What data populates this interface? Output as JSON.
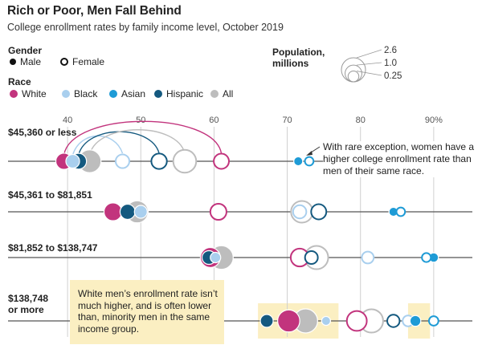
{
  "title": "Rich or Poor, Men Fall Behind",
  "subtitle": "College enrollment rates by family income level, October 2019",
  "legend": {
    "gender_title": "Gender",
    "gender_items": [
      {
        "label": "Male",
        "style": "filled"
      },
      {
        "label": "Female",
        "style": "open"
      }
    ],
    "race_title": "Race",
    "race_items": [
      {
        "label": "White",
        "color": "#c2347d"
      },
      {
        "label": "Black",
        "color": "#a9cfee"
      },
      {
        "label": "Asian",
        "color": "#1e9bd6"
      },
      {
        "label": "Hispanic",
        "color": "#14597f"
      },
      {
        "label": "All",
        "color": "#bdbdbd"
      }
    ],
    "population_title_line1": "Population,",
    "population_title_line2": "millions",
    "population_sizes": [
      {
        "label": "2.6",
        "value": 2.6
      },
      {
        "label": "1.0",
        "value": 1.0
      },
      {
        "label": "0.25",
        "value": 0.25
      }
    ]
  },
  "chart_data": {
    "type": "scatter",
    "title": "Rich or Poor, Men Fall Behind",
    "subtitle": "College enrollment rates by family income level, October 2019",
    "x_ticks": [
      {
        "value": 40,
        "label": "40"
      },
      {
        "value": 50,
        "label": "50"
      },
      {
        "value": 60,
        "label": "60"
      },
      {
        "value": 70,
        "label": "70"
      },
      {
        "value": 80,
        "label": "80"
      },
      {
        "value": 90,
        "label": "90%"
      }
    ],
    "xlim": [
      34.5,
      95.5
    ],
    "grid": true,
    "rows": [
      {
        "label_lines": [
          "$45,360 or less"
        ],
        "points": [
          {
            "race": "All",
            "gender": "Male",
            "value": 43,
            "population": 2.3
          },
          {
            "race": "White",
            "gender": "Male",
            "value": 39.5,
            "population": 0.9
          },
          {
            "race": "Hispanic",
            "gender": "Male",
            "value": 41.5,
            "population": 0.85
          },
          {
            "race": "Black",
            "gender": "Male",
            "value": 40.7,
            "population": 0.55
          },
          {
            "race": "All",
            "gender": "Female",
            "value": 56,
            "population": 2.3
          },
          {
            "race": "Hispanic",
            "gender": "Female",
            "value": 52.5,
            "population": 0.8
          },
          {
            "race": "White",
            "gender": "Female",
            "value": 61,
            "population": 0.75
          },
          {
            "race": "Black",
            "gender": "Female",
            "value": 47.5,
            "population": 0.55
          },
          {
            "race": "Asian",
            "gender": "Male",
            "value": 71.5,
            "population": 0.12
          },
          {
            "race": "Asian",
            "gender": "Female",
            "value": 73,
            "population": 0.1
          }
        ]
      },
      {
        "label_lines": [
          "$45,361 to $81,851"
        ],
        "points": [
          {
            "race": "All",
            "gender": "Male",
            "value": 49.5,
            "population": 2.1
          },
          {
            "race": "White",
            "gender": "Male",
            "value": 46.2,
            "population": 1.2
          },
          {
            "race": "Hispanic",
            "gender": "Male",
            "value": 48.2,
            "population": 0.75
          },
          {
            "race": "Black",
            "gender": "Male",
            "value": 50,
            "population": 0.45
          },
          {
            "race": "All",
            "gender": "Female",
            "value": 72,
            "population": 2.0
          },
          {
            "race": "White",
            "gender": "Female",
            "value": 60.6,
            "population": 0.9
          },
          {
            "race": "Hispanic",
            "gender": "Female",
            "value": 74.3,
            "population": 0.75
          },
          {
            "race": "Black",
            "gender": "Female",
            "value": 71.7,
            "population": 0.5
          },
          {
            "race": "Asian",
            "gender": "Male",
            "value": 84.5,
            "population": 0.12
          },
          {
            "race": "Asian",
            "gender": "Female",
            "value": 85.5,
            "population": 0.1
          }
        ]
      },
      {
        "label_lines": [
          "$81,852 to $138,747"
        ],
        "points": [
          {
            "race": "All",
            "gender": "Male",
            "value": 61,
            "population": 2.5
          },
          {
            "race": "White",
            "gender": "Male",
            "value": 59.5,
            "population": 1.6
          },
          {
            "race": "Hispanic",
            "gender": "Male",
            "value": 59.3,
            "population": 0.55
          },
          {
            "race": "Black",
            "gender": "Male",
            "value": 60.2,
            "population": 0.22
          },
          {
            "race": "All",
            "gender": "Female",
            "value": 74,
            "population": 2.4
          },
          {
            "race": "White",
            "gender": "Female",
            "value": 71.7,
            "population": 1.2
          },
          {
            "race": "Hispanic",
            "gender": "Female",
            "value": 73.3,
            "population": 0.45
          },
          {
            "race": "Black",
            "gender": "Female",
            "value": 81,
            "population": 0.35
          },
          {
            "race": "Asian",
            "gender": "Female",
            "value": 89,
            "population": 0.12
          },
          {
            "race": "Asian",
            "gender": "Male",
            "value": 90,
            "population": 0.15
          }
        ]
      },
      {
        "label_lines": [
          "$138,748",
          "or more"
        ],
        "points": [
          {
            "race": "All",
            "gender": "Male",
            "value": 72.5,
            "population": 2.6
          },
          {
            "race": "White",
            "gender": "Male",
            "value": 70.2,
            "population": 2.1
          },
          {
            "race": "Hispanic",
            "gender": "Male",
            "value": 67.2,
            "population": 0.45
          },
          {
            "race": "Black",
            "gender": "Male",
            "value": 75.3,
            "population": 0.12
          },
          {
            "race": "All",
            "gender": "Female",
            "value": 81.5,
            "population": 2.4
          },
          {
            "race": "White",
            "gender": "Female",
            "value": 79.5,
            "population": 1.6
          },
          {
            "race": "Hispanic",
            "gender": "Female",
            "value": 84.5,
            "population": 0.4
          },
          {
            "race": "Black",
            "gender": "Female",
            "value": 86.5,
            "population": 0.25
          },
          {
            "race": "Asian",
            "gender": "Male",
            "value": 87.5,
            "population": 0.25
          },
          {
            "race": "Asian",
            "gender": "Female",
            "value": 90,
            "population": 0.15
          }
        ]
      }
    ],
    "connectors_row1": [
      {
        "from_race": "White",
        "from_value": 39.5,
        "to_value": 61,
        "color": "#c2347d"
      },
      {
        "from_race": "Black",
        "from_value": 40.7,
        "to_value": 47.5,
        "color": "#a9cfee"
      },
      {
        "from_race": "Hispanic",
        "from_value": 41.5,
        "to_value": 52.5,
        "color": "#14597f"
      },
      {
        "from_race": "All",
        "from_value": 43,
        "to_value": 56,
        "color": "#bdbdbd"
      }
    ],
    "highlights_row4": [
      [
        66,
        77
      ],
      [
        86.5,
        89.5
      ]
    ]
  },
  "annotations": {
    "rare_exception": "With rare exception, women have a higher college enrollment rate than men of their same race.",
    "note_box": "White men’s enrollment rate isn’t much higher, and is often lower than, minority men in the same income group."
  }
}
